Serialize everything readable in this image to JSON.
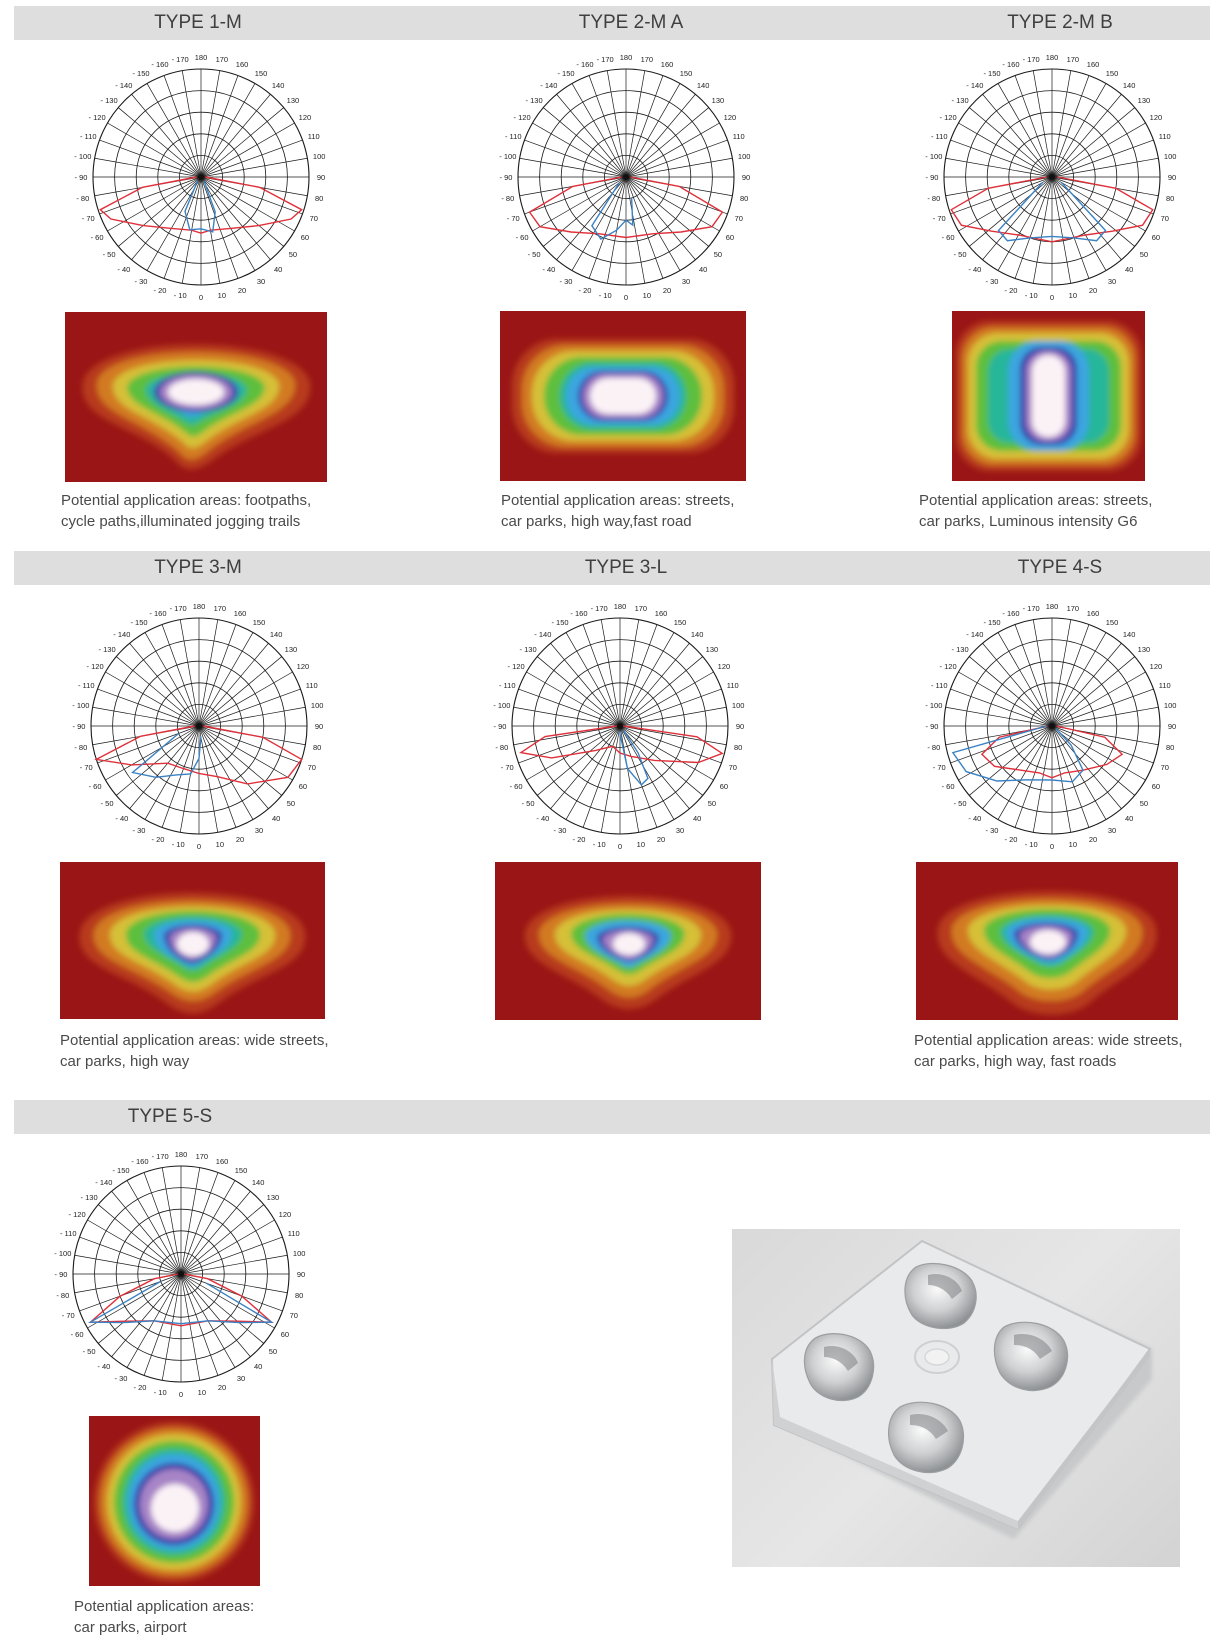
{
  "sections": [
    {
      "title": "TYPE 1-M",
      "caption": [
        "Potential application areas: footpaths,",
        "cycle paths,illuminated jogging trails"
      ]
    },
    {
      "title": "TYPE 2-M A",
      "caption": [
        "Potential application areas: streets,",
        "car parks, high way,fast road"
      ]
    },
    {
      "title": "TYPE 2-M B",
      "caption": [
        "Potential application areas: streets,",
        "car parks, Luminous intensity G6"
      ]
    },
    {
      "title": "TYPE 3-M",
      "caption": [
        "Potential application areas: wide streets,",
        "car parks, high way"
      ]
    },
    {
      "title": "TYPE 3-L",
      "caption": []
    },
    {
      "title": "TYPE 4-S",
      "caption": [
        "Potential application areas: wide streets,",
        "car parks, high way, fast roads"
      ]
    },
    {
      "title": "TYPE 5-S",
      "caption": [
        "Potential application areas:",
        "car parks, airport"
      ]
    }
  ],
  "polar_angle_labels": [
    "180",
    "170",
    "160",
    "150",
    "140",
    "130",
    "120",
    "110",
    "100",
    "90",
    "80",
    "70",
    "60",
    "50",
    "40",
    "30",
    "20",
    "10",
    "0",
    "- 10",
    "- 20",
    "- 30",
    "- 40",
    "- 50",
    "- 60",
    "- 70",
    "- 80",
    "- 90",
    "- 100",
    "- 110",
    "- 120",
    "- 130",
    "- 140",
    "- 150",
    "- 160",
    "- 170"
  ],
  "colors": {
    "band": "#dedede",
    "curve_c0": "#e0303a",
    "curve_c90": "#3a82c4",
    "heat_bg": "#9a1616"
  },
  "photo": {
    "subject": "led-lens-array"
  }
}
